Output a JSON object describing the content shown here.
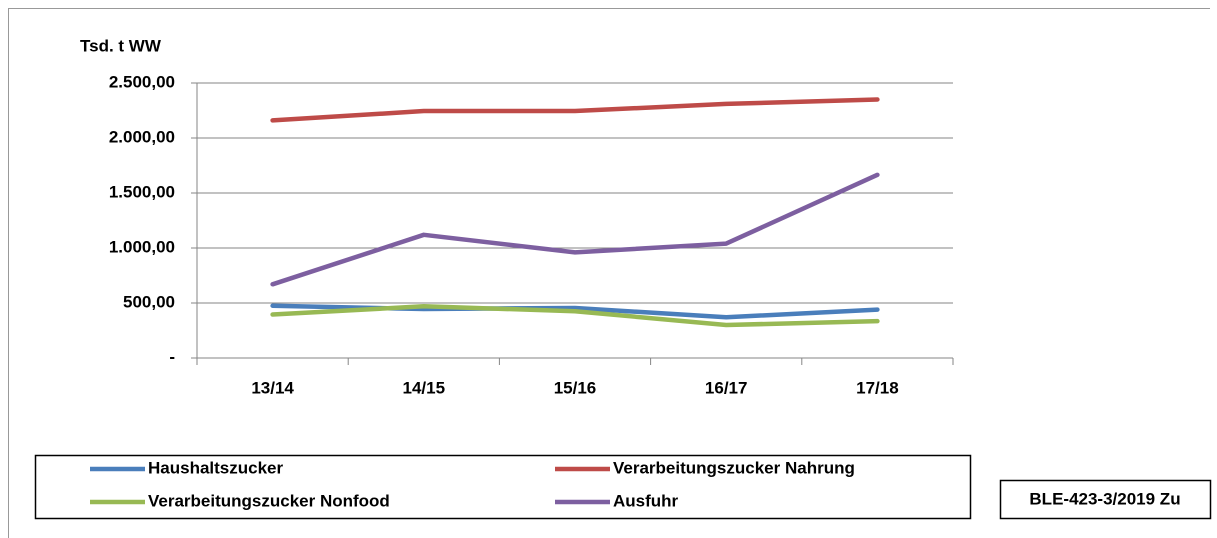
{
  "chart_data": {
    "type": "line",
    "y_axis_label": "Tsd. t WW",
    "categories": [
      "13/14",
      "14/15",
      "15/16",
      "16/17",
      "17/18"
    ],
    "series": [
      {
        "name": "Haushaltszucker",
        "color": "#4a7ebb",
        "values": [
          475,
          445,
          455,
          370,
          440
        ]
      },
      {
        "name": "Verarbeitungszucker Nahrung",
        "color": "#be4b48",
        "values": [
          2160,
          2245,
          2245,
          2310,
          2350
        ]
      },
      {
        "name": "Verarbeitungszucker Nonfood",
        "color": "#98b954",
        "values": [
          395,
          470,
          425,
          300,
          335
        ]
      },
      {
        "name": "Ausfuhr",
        "color": "#7d5fa0",
        "values": [
          670,
          1120,
          960,
          1040,
          1665
        ]
      }
    ],
    "ylim": [
      0,
      2500
    ],
    "yticks": [
      {
        "value": 0,
        "label": "-"
      },
      {
        "value": 500,
        "label": "500,00"
      },
      {
        "value": 1000,
        "label": "1.000,00"
      },
      {
        "value": 1500,
        "label": "1.500,00"
      },
      {
        "value": 2000,
        "label": "2.000,00"
      },
      {
        "value": 2500,
        "label": "2.500,00"
      }
    ],
    "grid": true,
    "source": "BLE-423-3/2019 Zu"
  }
}
